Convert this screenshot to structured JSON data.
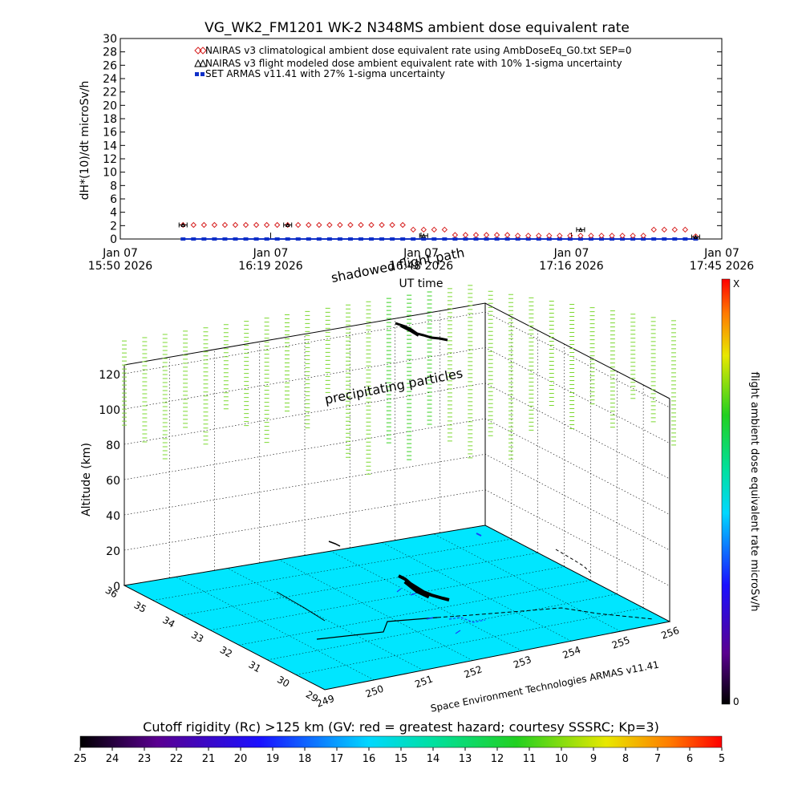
{
  "title": "VG_WK2_FM1201   WK-2 N348MS ambient dose equivalent rate",
  "timeseries": {
    "ylabel": "dH*(10)/dt microSv/h",
    "xlabel": "UT time",
    "y_ticks": [
      "0",
      "2",
      "4",
      "6",
      "8",
      "10",
      "12",
      "14",
      "16",
      "18",
      "20",
      "22",
      "24",
      "26",
      "28",
      "30"
    ],
    "x_ticks": [
      {
        "line1": "Jan 07",
        "line2": "15:50 2026"
      },
      {
        "line1": "Jan 07",
        "line2": "16:19 2026"
      },
      {
        "line1": "Jan 07",
        "line2": "16:48 2026"
      },
      {
        "line1": "Jan 07",
        "line2": "17:16 2026"
      },
      {
        "line1": "Jan 07",
        "line2": "17:45 2026"
      }
    ],
    "legend": [
      "NAIRAS v3 climatological ambient dose equivalent rate using AmbDoseEq_G0.txt SEP=0",
      "NAIRAS v3 flight modeled dose ambient equivalent rate with 10% 1-sigma uncertainty",
      "SET ARMAS v11.41 with 27% 1-sigma uncertainty"
    ],
    "colors": {
      "nairas_clim": "#d62020",
      "nairas_flight": "#000000",
      "armas": "#1030c8"
    }
  },
  "chart_data": {
    "type": "line",
    "title": "VG_WK2_FM1201   WK-2 N348MS ambient dose equivalent rate",
    "xlabel": "UT time",
    "ylabel": "dH*(10)/dt microSv/h",
    "ylim": [
      0,
      30
    ],
    "xlim_minutes_after_1550": [
      0,
      115
    ],
    "x_minutes_after_1550": [
      12,
      14,
      16,
      18,
      20,
      22,
      24,
      26,
      28,
      30,
      32,
      34,
      36,
      38,
      40,
      42,
      44,
      46,
      48,
      50,
      52,
      54,
      56,
      58,
      60,
      62,
      64,
      66,
      68,
      70,
      72,
      74,
      76,
      78,
      80,
      82,
      84,
      86,
      88,
      90,
      92,
      94,
      96,
      98,
      100,
      102,
      104,
      106,
      108,
      110
    ],
    "series": [
      {
        "name": "NAIRAS v3 climatological ambient dose equivalent rate using AmbDoseEq_G0.txt SEP=0",
        "values": [
          2.1,
          2.1,
          2.1,
          2.1,
          2.1,
          2.1,
          2.1,
          2.1,
          2.1,
          2.1,
          2.1,
          2.1,
          2.1,
          2.1,
          2.1,
          2.1,
          2.1,
          2.1,
          2.1,
          2.1,
          2.1,
          2.1,
          1.4,
          1.4,
          1.4,
          1.4,
          0.6,
          0.6,
          0.6,
          0.6,
          0.6,
          0.6,
          0.5,
          0.5,
          0.5,
          0.5,
          0.5,
          0.5,
          0.5,
          0.5,
          0.5,
          0.5,
          0.5,
          0.5,
          0.5,
          1.4,
          1.4,
          1.4,
          1.4,
          0.4
        ]
      },
      {
        "name": "NAIRAS v3 flight modeled dose ambient equivalent rate with 10% 1-sigma uncertainty",
        "x": [
          12,
          32,
          58,
          88,
          110
        ],
        "values": [
          2.1,
          2.1,
          0.5,
          1.4,
          0.3
        ]
      },
      {
        "name": "SET ARMAS v11.41 with 27% 1-sigma uncertainty",
        "values": [
          0,
          0,
          0,
          0,
          0,
          0,
          0,
          0,
          0,
          0,
          0,
          0,
          0,
          0,
          0,
          0,
          0,
          0,
          0,
          0,
          0,
          0,
          0,
          0,
          0,
          0,
          0,
          0,
          0,
          0,
          0,
          0,
          0,
          0,
          0,
          0,
          0,
          0,
          0,
          0,
          0,
          0,
          0,
          0,
          0,
          0,
          0,
          0,
          0,
          0
        ]
      }
    ]
  },
  "scene": {
    "label_shadowed": "shadowed flight path",
    "label_precip": "precipitating particles",
    "z_label": "Altitude (km)",
    "z_ticks": [
      "0",
      "20",
      "40",
      "60",
      "80",
      "100",
      "120"
    ],
    "lat_ticks": [
      "29",
      "30",
      "31",
      "32",
      "33",
      "34",
      "35",
      "36"
    ],
    "lon_ticks": [
      "249",
      "250",
      "251",
      "252",
      "253",
      "254",
      "255",
      "256"
    ],
    "credit": "Space Environment Technologies ARMAS v11.41",
    "colorbar_label": "flight ambient dose equivalent rate microSv/h",
    "colorbar_top": "X",
    "colorbar_bottom": "0",
    "ground_color": "#00e6ff"
  },
  "rigidity": {
    "label": "Cutoff rigidity (Rc) >125 km (GV: red = greatest hazard; courtesy SSSRC; Kp=3)",
    "ticks": [
      "25",
      "24",
      "23",
      "22",
      "21",
      "20",
      "19",
      "18",
      "17",
      "16",
      "15",
      "14",
      "13",
      "12",
      "11",
      "10",
      "9",
      "8",
      "7",
      "6",
      "5"
    ]
  }
}
